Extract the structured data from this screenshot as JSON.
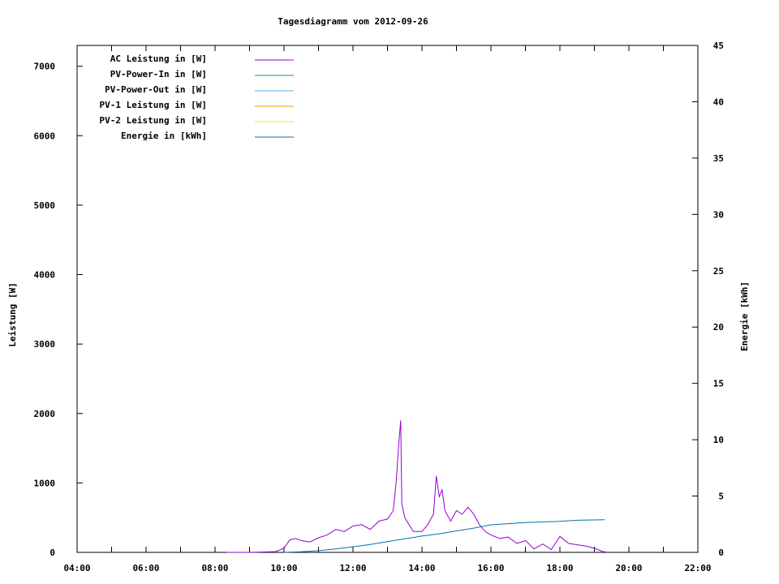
{
  "chart_data": {
    "type": "line",
    "title": "Tagesdiagramm vom 2012-09-26",
    "ylabel": "Leistung [W]",
    "y2label": "Energie [kWh]",
    "xlabel": "",
    "xlim": [
      "04:00",
      "22:00"
    ],
    "ylim": [
      0,
      7300
    ],
    "y2lim": [
      0,
      45
    ],
    "x_ticks": [
      "04:00",
      "06:00",
      "08:00",
      "10:00",
      "12:00",
      "14:00",
      "16:00",
      "18:00",
      "20:00",
      "22:00"
    ],
    "y_ticks": [
      0,
      1000,
      2000,
      3000,
      4000,
      5000,
      6000,
      7000
    ],
    "y2_ticks": [
      0,
      5,
      10,
      15,
      20,
      25,
      30,
      35,
      40,
      45
    ],
    "grid": false,
    "legend_position": "top-left",
    "series": [
      {
        "name": "AC Leistung in [W]",
        "color": "#9400d3",
        "axis": "y",
        "x": [
          "08:20",
          "09:00",
          "09:45",
          "10:00",
          "10:10",
          "10:20",
          "10:30",
          "10:45",
          "11:00",
          "11:15",
          "11:30",
          "11:45",
          "12:00",
          "12:15",
          "12:30",
          "12:45",
          "13:00",
          "13:10",
          "13:15",
          "13:20",
          "13:23",
          "13:25",
          "13:30",
          "13:45",
          "14:00",
          "14:10",
          "14:20",
          "14:25",
          "14:30",
          "14:35",
          "14:40",
          "14:50",
          "15:00",
          "15:10",
          "15:20",
          "15:30",
          "15:40",
          "15:50",
          "16:00",
          "16:15",
          "16:30",
          "16:45",
          "17:00",
          "17:15",
          "17:30",
          "17:45",
          "18:00",
          "18:15",
          "18:30",
          "18:45",
          "19:00",
          "19:15",
          "19:25"
        ],
        "values": [
          0,
          0,
          10,
          60,
          180,
          200,
          170,
          150,
          210,
          250,
          330,
          300,
          380,
          400,
          330,
          450,
          480,
          600,
          1000,
          1600,
          1900,
          700,
          500,
          300,
          300,
          400,
          550,
          1100,
          800,
          900,
          600,
          450,
          600,
          550,
          650,
          550,
          400,
          300,
          250,
          200,
          220,
          130,
          170,
          50,
          120,
          40,
          230,
          130,
          110,
          90,
          60,
          10,
          0
        ]
      },
      {
        "name": "PV-Power-In in [W]",
        "color": "#009e73",
        "axis": "y",
        "x": [],
        "values": []
      },
      {
        "name": "PV-Power-Out in [W]",
        "color": "#56b4e9",
        "axis": "y",
        "x": [],
        "values": []
      },
      {
        "name": "PV-1 Leistung in [W]",
        "color": "#e69f00",
        "axis": "y",
        "x": [],
        "values": []
      },
      {
        "name": "PV-2 Leistung in [W]",
        "color": "#f0e442",
        "axis": "y",
        "x": [],
        "values": []
      },
      {
        "name": "Energie in [kWh]",
        "color": "#0072b2",
        "axis": "y2",
        "x": [
          "10:00",
          "10:30",
          "11:00",
          "11:30",
          "12:00",
          "12:30",
          "13:00",
          "13:30",
          "14:00",
          "14:30",
          "15:00",
          "15:30",
          "16:00",
          "16:30",
          "17:00",
          "17:30",
          "18:00",
          "18:30",
          "19:18"
        ],
        "values": [
          0,
          0.05,
          0.15,
          0.3,
          0.5,
          0.7,
          0.95,
          1.2,
          1.45,
          1.65,
          1.9,
          2.15,
          2.45,
          2.55,
          2.65,
          2.7,
          2.75,
          2.85,
          2.9
        ]
      }
    ]
  }
}
